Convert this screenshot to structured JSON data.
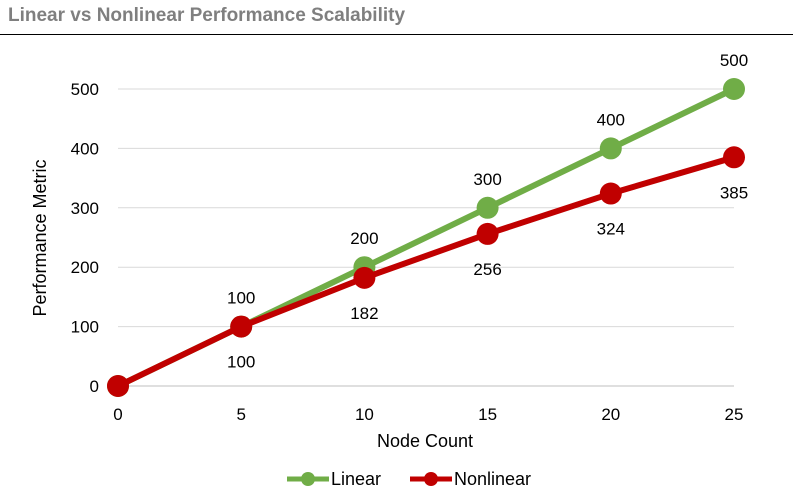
{
  "title": "Linear vs Nonlinear Performance Scalability",
  "colors": {
    "linear": "#70ad47",
    "nonlinear": "#c00000",
    "grid": "#d9d9d9",
    "axis": "#bfbfbf"
  },
  "chart_data": {
    "type": "line",
    "title": "Linear vs Nonlinear Performance Scalability",
    "xlabel": "Node Count",
    "ylabel": "Performance Metric",
    "x": [
      0,
      5,
      10,
      15,
      20,
      25
    ],
    "x_ticks": [
      "0",
      "5",
      "10",
      "15",
      "20",
      "25"
    ],
    "y_ticks": [
      "0",
      "100",
      "200",
      "300",
      "400",
      "500"
    ],
    "ylim": [
      0,
      500
    ],
    "xlim": [
      0,
      25
    ],
    "grid": "horizontal",
    "legend_position": "bottom",
    "series": [
      {
        "name": "Linear",
        "color": "#70ad47",
        "values": [
          0,
          100,
          200,
          300,
          400,
          500
        ],
        "labels": [
          "",
          "100",
          "200",
          "300",
          "400",
          "500"
        ],
        "label_position": "above"
      },
      {
        "name": "Nonlinear",
        "color": "#c00000",
        "values": [
          0,
          100,
          182,
          256,
          324,
          385
        ],
        "labels": [
          "",
          "100",
          "182",
          "256",
          "324",
          "385"
        ],
        "label_position": "below"
      }
    ]
  }
}
